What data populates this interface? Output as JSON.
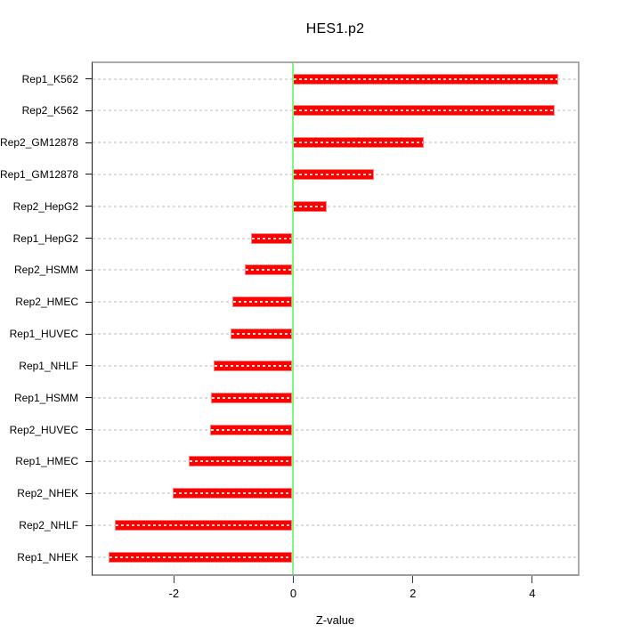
{
  "title": "HES1.p2",
  "chart_data": {
    "type": "bar",
    "orientation": "horizontal",
    "title": "HES1.p2",
    "xlabel": "Z-value",
    "categories": [
      "Rep1_K562",
      "Rep2_K562",
      "Rep2_GM12878",
      "Rep1_GM12878",
      "Rep2_HepG2",
      "Rep1_HepG2",
      "Rep2_HSMM",
      "Rep2_HMEC",
      "Rep1_HUVEC",
      "Rep1_NHLF",
      "Rep1_HSMM",
      "Rep2_HUVEC",
      "Rep1_HMEC",
      "Rep2_NHEK",
      "Rep2_NHLF",
      "Rep1_NHEK"
    ],
    "values": [
      4.45,
      4.39,
      2.2,
      1.37,
      0.57,
      -0.7,
      -0.79,
      -1.01,
      -1.04,
      -1.32,
      -1.36,
      -1.38,
      -1.73,
      -2.0,
      -2.97,
      -3.08
    ],
    "x_ticks": [
      -2,
      0,
      2,
      4
    ],
    "x_tick_labels": [
      "-2",
      "0",
      "2",
      "4"
    ],
    "xlim": [
      -3.36,
      4.77
    ],
    "grid": "horizontal dashed line at each bar center",
    "legend": null,
    "colors": {
      "bar_fill": "#ff0000",
      "bar_border": "#ff7f7f",
      "zero_line": "#7dfa7d",
      "grid_line": "#dcdcdc",
      "box_border": "#ababab",
      "axis_line": "#1a1a1a",
      "text": "#000000",
      "background": "#ffffff"
    }
  }
}
